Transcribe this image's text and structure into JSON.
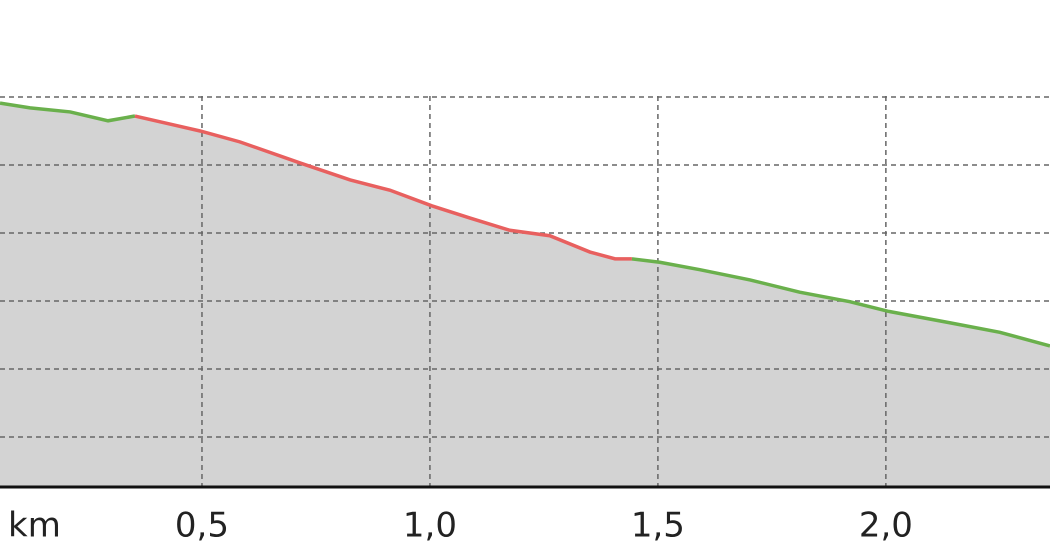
{
  "chart_data": {
    "type": "area",
    "x_label": "km",
    "xlim": [
      0.057,
      2.36
    ],
    "ylim": [
      2.65,
      74.26
    ],
    "xticks": [
      {
        "value": 0.5,
        "label": "0,5"
      },
      {
        "value": 1.0,
        "label": "1,0"
      },
      {
        "value": 1.5,
        "label": "1,5"
      },
      {
        "value": 2.0,
        "label": "2,0"
      }
    ],
    "yticks": [
      10,
      20,
      30,
      40,
      50,
      60
    ],
    "grid": true,
    "fill_color": "#d3d3d3",
    "series": [
      {
        "color": "#6ab04c",
        "x": [
          0.057,
          0.123,
          0.211,
          0.294,
          0.353
        ],
        "values": [
          59.1,
          58.4,
          57.8,
          56.5,
          57.2
        ]
      },
      {
        "color": "#e8605f",
        "x": [
          0.353,
          0.496,
          0.583,
          0.715,
          0.825,
          0.912,
          1.004,
          1.088,
          1.175,
          1.263,
          1.351,
          1.406,
          1.443
        ],
        "values": [
          57.2,
          55.0,
          53.4,
          50.3,
          47.8,
          46.3,
          44.0,
          42.2,
          40.4,
          39.6,
          37.2,
          36.2,
          36.2
        ]
      },
      {
        "color": "#6ab04c",
        "x": [
          1.443,
          1.504,
          1.592,
          1.702,
          1.811,
          1.921,
          2.004,
          2.14,
          2.25,
          2.36
        ],
        "values": [
          36.2,
          35.7,
          34.6,
          33.1,
          31.3,
          29.9,
          28.5,
          26.8,
          25.4,
          23.4
        ]
      }
    ]
  }
}
